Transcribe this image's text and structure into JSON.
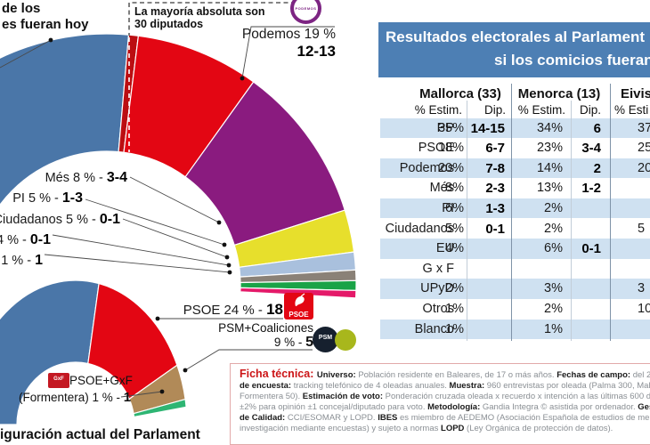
{
  "titles": {
    "top_left_line1": "de los",
    "top_left_line2": "es fueran hoy",
    "majority_line1": "La mayoría absoluta son",
    "majority_line2": "30 diputados",
    "current_chart_title": "iguración actual del Parlament"
  },
  "panel": {
    "header_line1": "Resultados electorales al Parlament",
    "header_line2": "si los comicios fueran",
    "header_bg": "#4d7fb4"
  },
  "table": {
    "stripe_color": "#cfe1f1",
    "islands": [
      {
        "name": "Mallorca (33)",
        "col1": "% Estim.",
        "col2": "Dip."
      },
      {
        "name": "Menorca (13)",
        "col1": "% Estim.",
        "col2": "Dip."
      },
      {
        "name": "Eivis",
        "col1": "% Esti",
        "col2": ""
      }
    ],
    "rows": [
      {
        "party": "PP",
        "m_pct": "35%",
        "m_dip": "14-15",
        "n_pct": "34%",
        "n_dip": "6",
        "e_pct": "37"
      },
      {
        "party": "PSOE",
        "m_pct": "18%",
        "m_dip": "6-7",
        "n_pct": "23%",
        "n_dip": "3-4",
        "e_pct": "25"
      },
      {
        "party": "Podemos",
        "m_pct": "20%",
        "m_dip": "7-8",
        "n_pct": "14%",
        "n_dip": "2",
        "e_pct": "20"
      },
      {
        "party": "Més",
        "m_pct": "8%",
        "m_dip": "2-3",
        "n_pct": "13%",
        "n_dip": "1-2",
        "e_pct": ""
      },
      {
        "party": "PI",
        "m_pct": "6%",
        "m_dip": "1-3",
        "n_pct": "2%",
        "n_dip": "",
        "e_pct": ""
      },
      {
        "party": "Ciudadanos",
        "m_pct": "5%",
        "m_dip": "0-1",
        "n_pct": "2%",
        "n_dip": "",
        "e_pct": "5"
      },
      {
        "party": "EU",
        "m_pct": "4%",
        "m_dip": "",
        "n_pct": "6%",
        "n_dip": "0-1",
        "e_pct": ""
      },
      {
        "party": "G x F",
        "m_pct": "",
        "m_dip": "",
        "n_pct": "",
        "n_dip": "",
        "e_pct": ""
      },
      {
        "party": "UPyD",
        "m_pct": "2%",
        "m_dip": "",
        "n_pct": "3%",
        "n_dip": "",
        "e_pct": "3"
      },
      {
        "party": "Otros",
        "m_pct": "1%",
        "m_dip": "",
        "n_pct": "2%",
        "n_dip": "",
        "e_pct": "10"
      },
      {
        "party": "Blanco",
        "m_pct": "1%",
        "m_dip": "",
        "n_pct": "1%",
        "n_dip": "",
        "e_pct": ""
      }
    ]
  },
  "chart_data": [
    {
      "type": "pie",
      "subtype": "semicircle-donut",
      "annotation": "La mayoría absoluta son 30 diputados",
      "total_seats_note": "30 diputados = mayoría absoluta",
      "segments": [
        {
          "party": "PP",
          "color": "#4a76a8",
          "share": 0.532,
          "label": "",
          "seats": ""
        },
        {
          "party": "PSOE",
          "color": "#e30613",
          "share": 0.153,
          "label": "",
          "seats": ""
        },
        {
          "party": "Podemos",
          "color": "#8a1b7f",
          "share": 0.195,
          "label": "Podemos 19 %",
          "seats": "12-13"
        },
        {
          "party": "Més",
          "color": "#e7df2c",
          "share": 0.052,
          "label": "Més 8 % - ",
          "seats": "3-4"
        },
        {
          "party": "PI",
          "color": "#a9c0dd",
          "share": 0.022,
          "label": "PI 5 % - ",
          "seats": "1-3"
        },
        {
          "party": "Ciudadanos",
          "color": "#8a8177",
          "share": 0.013,
          "label": "Ciudadanos 5 % - ",
          "seats": "0-1"
        },
        {
          "party": "EU",
          "color": "#1aa347",
          "share": 0.012,
          "label": "4 % - ",
          "seats": "0-1"
        },
        {
          "party": "GxF",
          "color": "#e41a69",
          "share": 0.009,
          "label": "F 1 % - ",
          "seats": "1"
        }
      ]
    },
    {
      "type": "pie",
      "subtype": "semicircle-donut",
      "title": "iguración actual del Parlament",
      "segments": [
        {
          "party": "PP",
          "color": "#4a76a8",
          "share": 0.59,
          "label": "",
          "seats": ""
        },
        {
          "party": "PSOE",
          "color": "#e30613",
          "share": 0.31,
          "label": "PSOE 24 % - ",
          "seats": "18"
        },
        {
          "party": "PSM+Coaliciones",
          "color": "#b18a58",
          "share": 0.082,
          "label": "PSM+Coaliciones",
          "label2": "9 % - ",
          "seats": "5"
        },
        {
          "party": "PSOE+GxF (Formentera)",
          "color": "#2eb573",
          "share": 0.018,
          "label": "PSOE+GxF",
          "label2": "(Formentera) 1 % - ",
          "seats": "1"
        }
      ]
    }
  ],
  "logos": {
    "podemos": "PODEMOS",
    "psoe": "PSOE",
    "psm": "PSM",
    "gxf": "GxF"
  },
  "ficha": {
    "lines": [
      [
        {
          "s": "t",
          "t": "Ficha técnica: "
        },
        {
          "s": "b",
          "t": "Universo: "
        },
        {
          "s": "n",
          "t": "Población residente en Baleares, de 17 o más años. "
        },
        {
          "s": "b",
          "t": "Fechas de campo: "
        },
        {
          "s": "n",
          "t": "del 26 de"
        }
      ],
      [
        {
          "s": "b",
          "t": "de encuesta: "
        },
        {
          "s": "n",
          "t": "tracking telefónico de 4 oleadas anuales. "
        },
        {
          "s": "b",
          "t": "Muestra: "
        },
        {
          "s": "n",
          "t": "960 entrevistas por oleada (Palma 300, Mallo"
        }
      ],
      [
        {
          "s": "n",
          "t": "Formentera 50). "
        },
        {
          "s": "b",
          "t": "Estimación de voto: "
        },
        {
          "s": "n",
          "t": "Ponderación cruzada oleada x recuerdo x intención a las últimas 600 de"
        }
      ],
      [
        {
          "s": "n",
          "t": "±2% para opinión ±1 concejal/diputado para voto. "
        },
        {
          "s": "b",
          "t": "Metodología: "
        },
        {
          "s": "n",
          "t": "Gandia Integra © asistida por ordenador. "
        },
        {
          "s": "b",
          "t": "Gest"
        }
      ],
      [
        {
          "s": "b",
          "t": "de Calidad: "
        },
        {
          "s": "n",
          "t": "CCI/ESOMAR y LOPD. "
        },
        {
          "s": "b",
          "t": "IBES "
        },
        {
          "s": "n",
          "t": "es miembro de AEDEMO (Asociación Española de estudios de mercad"
        }
      ],
      [
        {
          "s": "n",
          "t": "investigación mediante encuestas) y sujeto a normas "
        },
        {
          "s": "b",
          "t": "LOPD "
        },
        {
          "s": "n",
          "t": "(Ley Orgánica de protección de datos)."
        }
      ]
    ]
  }
}
